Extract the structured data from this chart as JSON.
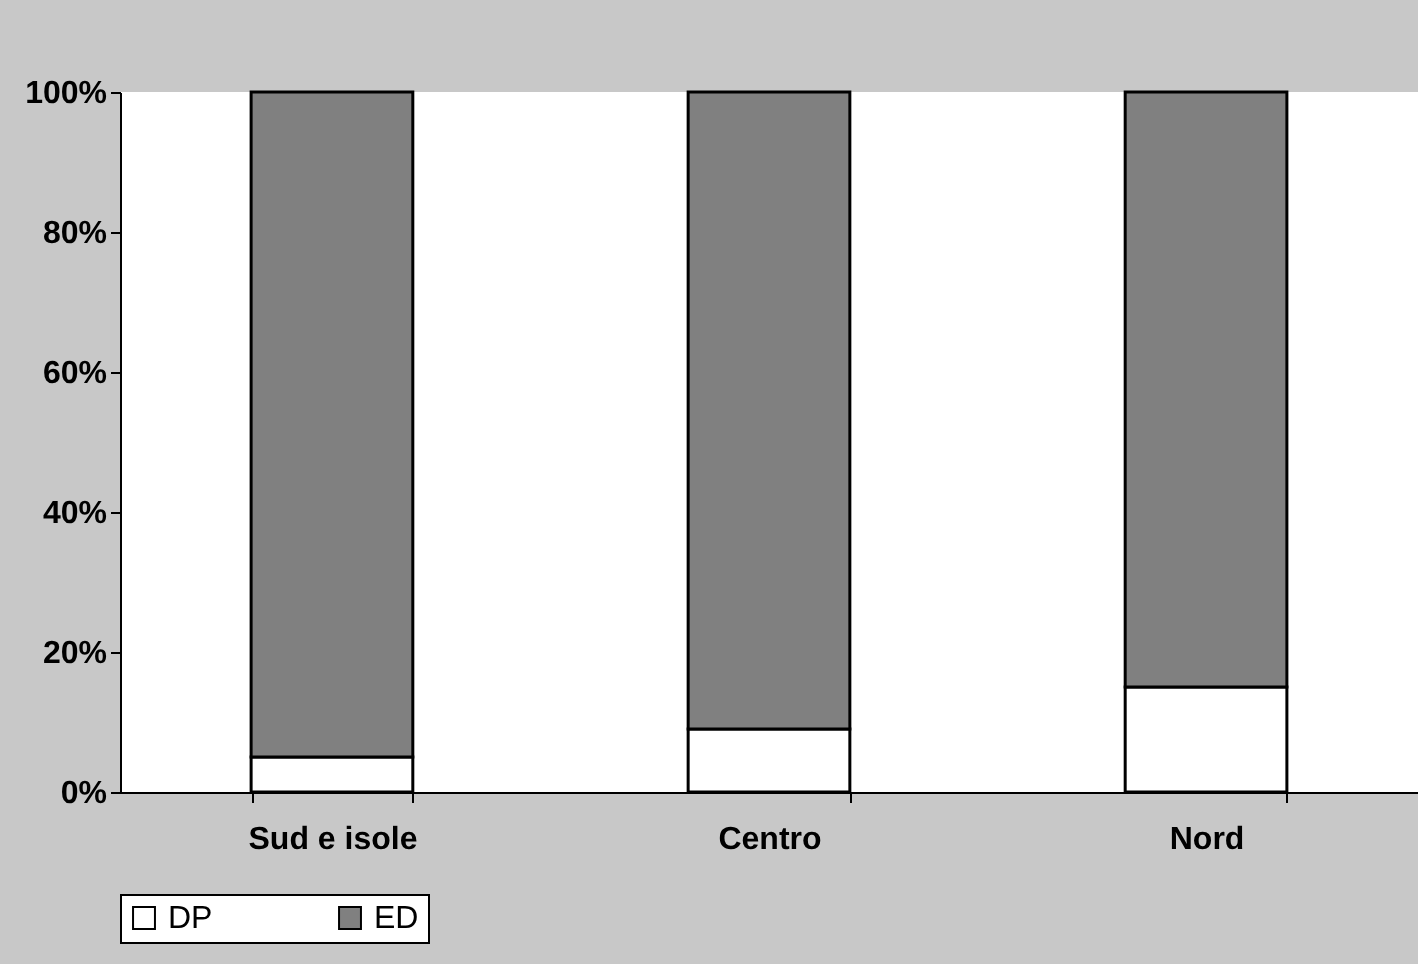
{
  "chart_data": {
    "type": "bar",
    "stacked": true,
    "categories": [
      "Sud e isole",
      "Centro",
      "Nord"
    ],
    "series": [
      {
        "name": "DP",
        "color": "#ffffff",
        "values": [
          5,
          9,
          15
        ]
      },
      {
        "name": "ED",
        "color": "#808080",
        "values": [
          95,
          91,
          85
        ]
      }
    ],
    "ylim": [
      0,
      100
    ],
    "yticks": [
      {
        "value": 0,
        "label": "0%"
      },
      {
        "value": 20,
        "label": "20%"
      },
      {
        "value": 40,
        "label": "40%"
      },
      {
        "value": 60,
        "label": "60%"
      },
      {
        "value": 80,
        "label": "80%"
      },
      {
        "value": 100,
        "label": "100%"
      }
    ],
    "grid": false,
    "legend": "bottom"
  }
}
